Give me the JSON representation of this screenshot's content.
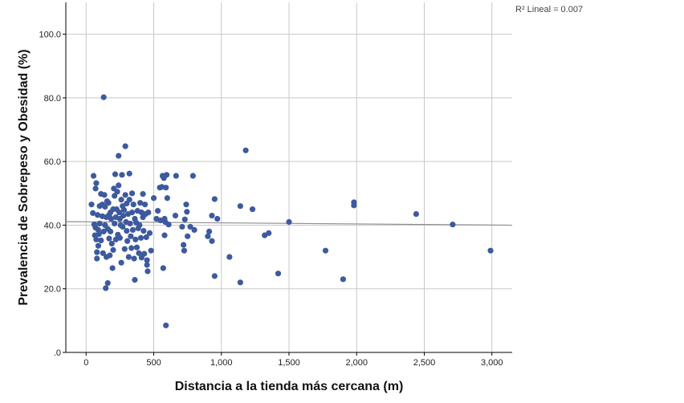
{
  "chart_data": {
    "type": "scatter",
    "title": "",
    "xlabel": "Distancia a la tienda más cercana (m)",
    "ylabel": "Prevalencia de Sobrepeso y Obesidad (%)",
    "xlim": [
      -150,
      3150
    ],
    "ylim": [
      0,
      110
    ],
    "x_ticks": [
      0,
      500,
      1000,
      1500,
      2000,
      2500,
      3000
    ],
    "x_tick_labels": [
      "0",
      "500",
      "1,000",
      "1,500",
      "2,000",
      "2,500",
      "3,000"
    ],
    "y_ticks": [
      0,
      20,
      40,
      60,
      80,
      100
    ],
    "y_tick_labels": [
      ".0",
      "20.0",
      "40.0",
      "60.0",
      "80.0",
      "100.0"
    ],
    "grid": true,
    "point_color": "#3d5a9e",
    "fit_line_color": "#8c8c8c",
    "fit_line": {
      "x": [
        -150,
        3150
      ],
      "y": [
        41.1,
        40.0
      ]
    },
    "r2_label": "R² Lineal = 0.007",
    "points": [
      [
        40,
        46.5
      ],
      [
        50,
        43.8
      ],
      [
        55,
        55.5
      ],
      [
        60,
        40.2
      ],
      [
        65,
        36.8
      ],
      [
        70,
        51.5
      ],
      [
        70,
        39.2
      ],
      [
        75,
        53.2
      ],
      [
        75,
        35.5
      ],
      [
        80,
        31.5
      ],
      [
        80,
        29.5
      ],
      [
        85,
        43.2
      ],
      [
        90,
        38.5
      ],
      [
        90,
        33.5
      ],
      [
        95,
        37.2
      ],
      [
        100,
        40.5
      ],
      [
        100,
        46.0
      ],
      [
        110,
        49.8
      ],
      [
        110,
        35.2
      ],
      [
        120,
        42.8
      ],
      [
        120,
        46.5
      ],
      [
        125,
        31.2
      ],
      [
        130,
        80.2
      ],
      [
        130,
        38.0
      ],
      [
        135,
        49.5
      ],
      [
        140,
        45.8
      ],
      [
        140,
        40.0
      ],
      [
        145,
        20.2
      ],
      [
        150,
        42.5
      ],
      [
        150,
        30.0
      ],
      [
        155,
        47.5
      ],
      [
        160,
        38.8
      ],
      [
        160,
        21.8
      ],
      [
        165,
        47.0
      ],
      [
        170,
        43.2
      ],
      [
        170,
        35.8
      ],
      [
        175,
        30.5
      ],
      [
        180,
        44.0
      ],
      [
        180,
        38.0
      ],
      [
        185,
        42.0
      ],
      [
        190,
        34.2
      ],
      [
        195,
        26.5
      ],
      [
        200,
        45.0
      ],
      [
        200,
        32.2
      ],
      [
        205,
        51.5
      ],
      [
        210,
        49.2
      ],
      [
        210,
        40.5
      ],
      [
        215,
        56.0
      ],
      [
        220,
        42.5
      ],
      [
        220,
        35.5
      ],
      [
        225,
        45.0
      ],
      [
        230,
        50.5
      ],
      [
        235,
        37.0
      ],
      [
        240,
        61.8
      ],
      [
        240,
        52.5
      ],
      [
        245,
        44.0
      ],
      [
        250,
        42.0
      ],
      [
        250,
        36.0
      ],
      [
        255,
        40.0
      ],
      [
        260,
        48.0
      ],
      [
        260,
        28.2
      ],
      [
        265,
        55.8
      ],
      [
        270,
        46.0
      ],
      [
        270,
        39.5
      ],
      [
        275,
        43.0
      ],
      [
        280,
        44.8
      ],
      [
        285,
        32.5
      ],
      [
        290,
        64.8
      ],
      [
        290,
        49.5
      ],
      [
        295,
        41.0
      ],
      [
        300,
        46.8
      ],
      [
        300,
        38.2
      ],
      [
        305,
        35.0
      ],
      [
        310,
        43.5
      ],
      [
        315,
        30.0
      ],
      [
        320,
        48.0
      ],
      [
        320,
        56.2
      ],
      [
        325,
        40.5
      ],
      [
        330,
        36.5
      ],
      [
        335,
        32.8
      ],
      [
        340,
        44.0
      ],
      [
        340,
        50.0
      ],
      [
        345,
        38.5
      ],
      [
        350,
        46.5
      ],
      [
        355,
        29.5
      ],
      [
        360,
        42.0
      ],
      [
        360,
        22.8
      ],
      [
        365,
        35.5
      ],
      [
        370,
        40.8
      ],
      [
        375,
        33.0
      ],
      [
        380,
        44.5
      ],
      [
        385,
        39.0
      ],
      [
        390,
        31.2
      ],
      [
        395,
        40.0
      ],
      [
        400,
        47.0
      ],
      [
        405,
        36.0
      ],
      [
        410,
        44.0
      ],
      [
        410,
        29.8
      ],
      [
        420,
        49.8
      ],
      [
        420,
        42.5
      ],
      [
        425,
        38.2
      ],
      [
        430,
        31.0
      ],
      [
        435,
        46.5
      ],
      [
        440,
        43.5
      ],
      [
        445,
        36.2
      ],
      [
        450,
        29.0
      ],
      [
        450,
        27.5
      ],
      [
        455,
        25.5
      ],
      [
        460,
        44.0
      ],
      [
        470,
        37.5
      ],
      [
        480,
        32.0
      ],
      [
        500,
        48.5
      ],
      [
        520,
        42.0
      ],
      [
        530,
        44.5
      ],
      [
        545,
        51.8
      ],
      [
        550,
        41.5
      ],
      [
        560,
        52.0
      ],
      [
        565,
        55.5
      ],
      [
        570,
        26.5
      ],
      [
        575,
        54.8
      ],
      [
        580,
        42.0
      ],
      [
        580,
        36.8
      ],
      [
        585,
        41.0
      ],
      [
        590,
        8.5
      ],
      [
        590,
        51.8
      ],
      [
        595,
        55.8
      ],
      [
        600,
        48.5
      ],
      [
        610,
        40.2
      ],
      [
        660,
        43.0
      ],
      [
        665,
        55.5
      ],
      [
        710,
        39.5
      ],
      [
        720,
        33.8
      ],
      [
        725,
        32.0
      ],
      [
        730,
        41.8
      ],
      [
        740,
        46.5
      ],
      [
        745,
        44.2
      ],
      [
        750,
        36.5
      ],
      [
        770,
        39.5
      ],
      [
        790,
        55.5
      ],
      [
        800,
        38.5
      ],
      [
        900,
        36.5
      ],
      [
        910,
        38.0
      ],
      [
        930,
        43.0
      ],
      [
        930,
        35.0
      ],
      [
        950,
        48.2
      ],
      [
        950,
        24.0
      ],
      [
        970,
        42.0
      ],
      [
        1060,
        30.0
      ],
      [
        1140,
        46.0
      ],
      [
        1140,
        22.0
      ],
      [
        1180,
        63.5
      ],
      [
        1230,
        45.0
      ],
      [
        1320,
        36.8
      ],
      [
        1350,
        37.5
      ],
      [
        1420,
        24.8
      ],
      [
        1500,
        41.0
      ],
      [
        1770,
        32.0
      ],
      [
        1900,
        23.0
      ],
      [
        1980,
        47.2
      ],
      [
        1980,
        46.2
      ],
      [
        2440,
        43.5
      ],
      [
        2710,
        40.2
      ],
      [
        2990,
        32.0
      ]
    ]
  }
}
